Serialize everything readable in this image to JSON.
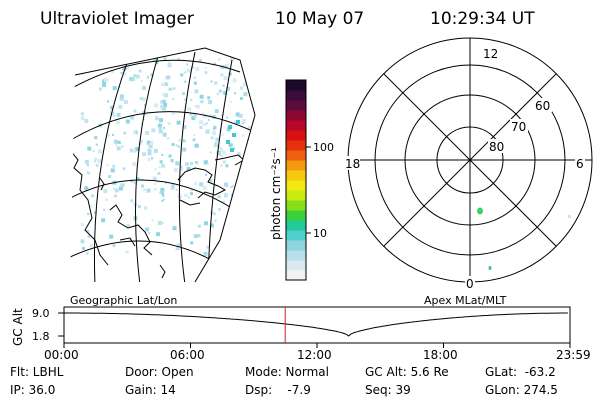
{
  "title": {
    "instrument": "Ultraviolet Imager",
    "date": "10 May 07",
    "time": "10:29:34 UT"
  },
  "left_map": {
    "label": "Geographic Lat/Lon"
  },
  "colorbar": {
    "unit_label": "photon cm⁻²s⁻¹",
    "ticks": [
      {
        "value": 100,
        "label": "100"
      },
      {
        "value": 10,
        "label": "10"
      }
    ],
    "colors": [
      "#f2f2f2",
      "#d8eaf0",
      "#b9e0ea",
      "#8fd4e0",
      "#4fd0cc",
      "#22c99a",
      "#3ad13a",
      "#86de1a",
      "#c8ea10",
      "#f1ea10",
      "#f7c810",
      "#f39a10",
      "#ee6010",
      "#e63010",
      "#d81010",
      "#b8082a",
      "#8c0830",
      "#5c0c3a",
      "#3a0c3c",
      "#1c0a2a"
    ]
  },
  "polar_plot": {
    "label": "Apex MLat/MLT",
    "mlt_labels": {
      "top": "12",
      "left": "18",
      "right": "6",
      "bottom": "0"
    },
    "lat_labels": [
      "60",
      "70",
      "80"
    ]
  },
  "gc_alt_strip": {
    "ylabel": "GC Alt",
    "yticks": [
      "9.0",
      "1.8"
    ],
    "xticks": [
      "00:00",
      "06:00",
      "12:00",
      "18:00",
      "23:59"
    ],
    "current_time_hours": 10.49,
    "curve": {
      "apogee_re": 9.0,
      "perigee_re": 1.8,
      "perigee_time_hours": 13.5,
      "start_time_hours": 0,
      "end_time_hours": 23.98
    }
  },
  "status": {
    "filter": "Flt: LBHL",
    "ip": "IP: 36.0",
    "door": "Door: Open",
    "gain": "Gain: 14",
    "mode": "Mode: Normal",
    "dsp": "Dsp:    -7.9",
    "gc_alt": "GC Alt: 5.6 Re",
    "seq": "Seq: 39",
    "glat": "GLat:  -63.2",
    "glon": "GLon: 274.5"
  },
  "colors": {
    "current_time_marker": "#d02020",
    "blob": "#40d060"
  }
}
